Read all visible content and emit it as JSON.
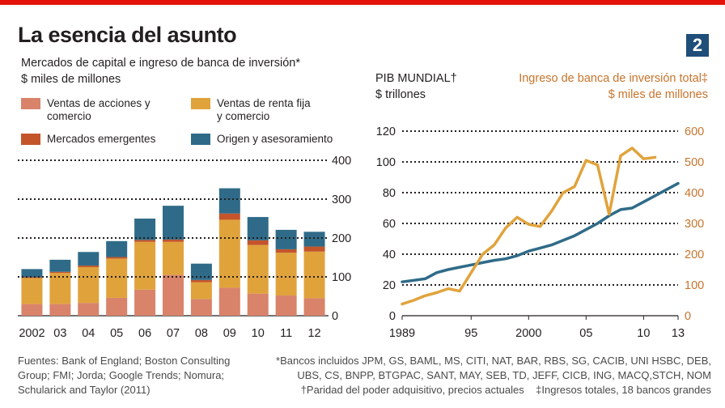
{
  "header": {
    "title": "La esencia del asunto",
    "chart_number": "2"
  },
  "left_chart": {
    "subtitle": "Mercados de capital e ingreso de banca de inversión*",
    "unit": "$ miles de millones",
    "legend": [
      {
        "label_line1": "Ventas de acciones y",
        "label_line2": "comercio",
        "color": "#d9836b"
      },
      {
        "label_line1": "Ventas de renta fija",
        "label_line2": "y comercio",
        "color": "#e0a33c"
      },
      {
        "label_line1": "Mercados emergentes",
        "label_line2": "",
        "color": "#c4552b"
      },
      {
        "label_line1": "Origen y asesoramiento",
        "label_line2": "",
        "color": "#2f6b88"
      }
    ]
  },
  "right_chart": {
    "ylabel": "PIB MUNDIAL†",
    "yunit": "$ trillones",
    "y2label": "Ingreso de banca de inversión total‡",
    "y2unit": "$ miles de millones"
  },
  "chart_data": [
    {
      "type": "bar",
      "stacked": true,
      "title": "Mercados de capital e ingreso de banca de inversión*",
      "ylabel": "$ miles de millones",
      "categories": [
        "2002",
        "03",
        "04",
        "05",
        "06",
        "07",
        "08",
        "09",
        "10",
        "11",
        "12"
      ],
      "series": [
        {
          "name": "Ventas de acciones y comercio",
          "color": "#d9836b",
          "values": [
            30,
            30,
            33,
            46,
            67,
            105,
            43,
            72,
            57,
            52,
            45
          ]
        },
        {
          "name": "Ventas de renta fija y comercio",
          "color": "#e0a33c",
          "values": [
            67,
            80,
            92,
            101,
            123,
            85,
            43,
            175,
            125,
            110,
            120
          ]
        },
        {
          "name": "Mercados emergentes",
          "color": "#c4552b",
          "values": [
            2,
            3,
            4,
            4,
            5,
            6,
            6,
            16,
            12,
            9,
            13
          ]
        },
        {
          "name": "Origen y asesoramiento",
          "color": "#2f6b88",
          "values": [
            21,
            31,
            35,
            41,
            55,
            87,
            42,
            65,
            60,
            50,
            38
          ]
        }
      ],
      "yticks": [
        0,
        100,
        200,
        300,
        400
      ],
      "ylim": [
        0,
        400
      ],
      "y_axis_side": "right",
      "grid": true
    },
    {
      "type": "line",
      "ylabel": "PIB MUNDIAL† ($ trillones)",
      "y2label": "Ingreso de banca de inversión total‡ ($ miles de millones)",
      "xlim": [
        1989,
        2013
      ],
      "xticks": [
        "1989",
        "95",
        "2000",
        "05",
        "10",
        "13"
      ],
      "xtick_values": [
        1989,
        1995,
        2000,
        2005,
        2010,
        2013
      ],
      "yticks": [
        0,
        20,
        40,
        60,
        80,
        100,
        120
      ],
      "ylim": [
        0,
        120
      ],
      "y2ticks": [
        0,
        100,
        200,
        300,
        400,
        500,
        600
      ],
      "y2lim": [
        0,
        600
      ],
      "series": [
        {
          "name": "PIB MUNDIAL†",
          "axis": "left",
          "color": "#2f6b88",
          "x": [
            1989,
            1990,
            1991,
            1992,
            1993,
            1994,
            1995,
            1996,
            1997,
            1998,
            1999,
            2000,
            2001,
            2002,
            2003,
            2004,
            2005,
            2006,
            2007,
            2008,
            2009,
            2010,
            2011,
            2012,
            2013
          ],
          "values": [
            22,
            23,
            24,
            28,
            30,
            31.5,
            33,
            34.5,
            36,
            37,
            39,
            42,
            44,
            46,
            49,
            52,
            56,
            60,
            65,
            69,
            70,
            74,
            78,
            82,
            86
          ]
        },
        {
          "name": "Ingreso de banca de inversión total‡",
          "axis": "right",
          "color": "#e0a33c",
          "x": [
            1989,
            1990,
            1991,
            1992,
            1993,
            1994,
            1995,
            1996,
            1997,
            1998,
            1999,
            2000,
            2001,
            2002,
            2003,
            2004,
            2005,
            2006,
            2007,
            2008,
            2009,
            2010,
            2011
          ],
          "values": [
            38,
            50,
            65,
            75,
            88,
            80,
            140,
            200,
            230,
            285,
            320,
            297,
            290,
            340,
            400,
            420,
            505,
            490,
            330,
            520,
            545,
            510,
            515
          ]
        }
      ],
      "grid": true
    }
  ],
  "footer": {
    "left_line1": "Fuentes: Bank of England; Boston Consulting",
    "left_line2": "Group; FMI; Jorda; Google Trends; Nomura;",
    "left_line3": "Schularick and Taylor (2011)",
    "right_line1": "*Bancos incluidos JPM, GS, BAML, MS, CITI, NAT, BAR, RBS, SG, CACIB, UNI HSBC, DEB,",
    "right_line2": "UBS, CS, BNPP, BTGPAC, SANT, MAY, SEB, TD, JEFF, CICB, ING, MACQ,STCH, NOM",
    "right_line3": "†Paridad del poder adquisitivo, precios actuales    ‡Ingresos totales, 18 bancos grandes"
  }
}
